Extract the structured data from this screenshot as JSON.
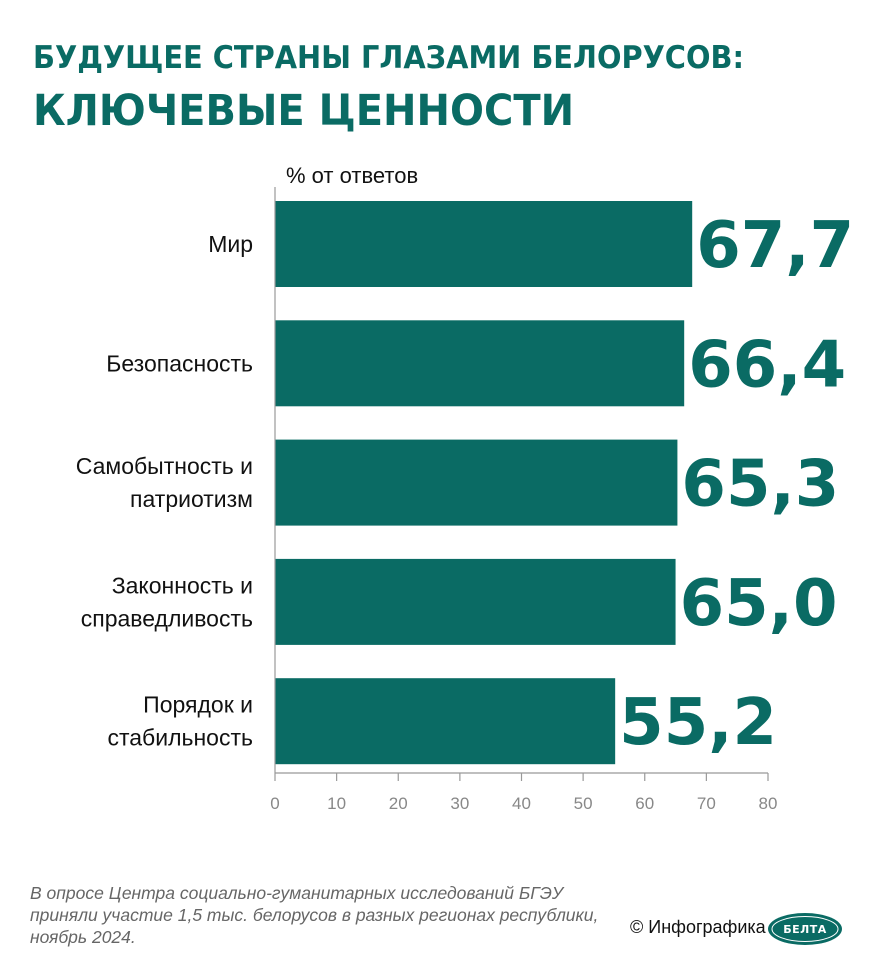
{
  "header": {
    "title_line1": "БУДУЩЕЕ СТРАНЫ ГЛАЗАМИ БЕЛОРУСОВ:",
    "title_line2": "КЛЮЧЕВЫЕ ЦЕННОСТИ"
  },
  "chart_data": {
    "type": "bar",
    "orientation": "horizontal",
    "title": "БУДУЩЕЕ СТРАНЫ ГЛАЗАМИ БЕЛОРУСОВ: КЛЮЧЕВЫЕ ЦЕННОСТИ",
    "unit_label": "% от ответов",
    "categories": [
      [
        "Мир"
      ],
      [
        "Безопасность"
      ],
      [
        "Самобытность и",
        "патриотизм"
      ],
      [
        "Законность и",
        "справедливость"
      ],
      [
        "Порядок и",
        "стабильность"
      ]
    ],
    "values": [
      67.7,
      66.4,
      65.3,
      65.0,
      55.2
    ],
    "value_labels": [
      "67,7",
      "66,4",
      "65,3",
      "65,0",
      "55,2"
    ],
    "xlim": [
      0,
      80
    ],
    "xticks": [
      0,
      10,
      20,
      30,
      40,
      50,
      60,
      70,
      80
    ],
    "bar_color": "#0a6b64",
    "grid": false
  },
  "footer": {
    "note": "В опросе Центра социально-гуманитарных исследований БГЭУ приняли участие 1,5 тыс. белорусов в разных регионах республики, ноябрь 2024.",
    "credit": "© Инфографика",
    "logo_text": "БЕЛТА"
  }
}
